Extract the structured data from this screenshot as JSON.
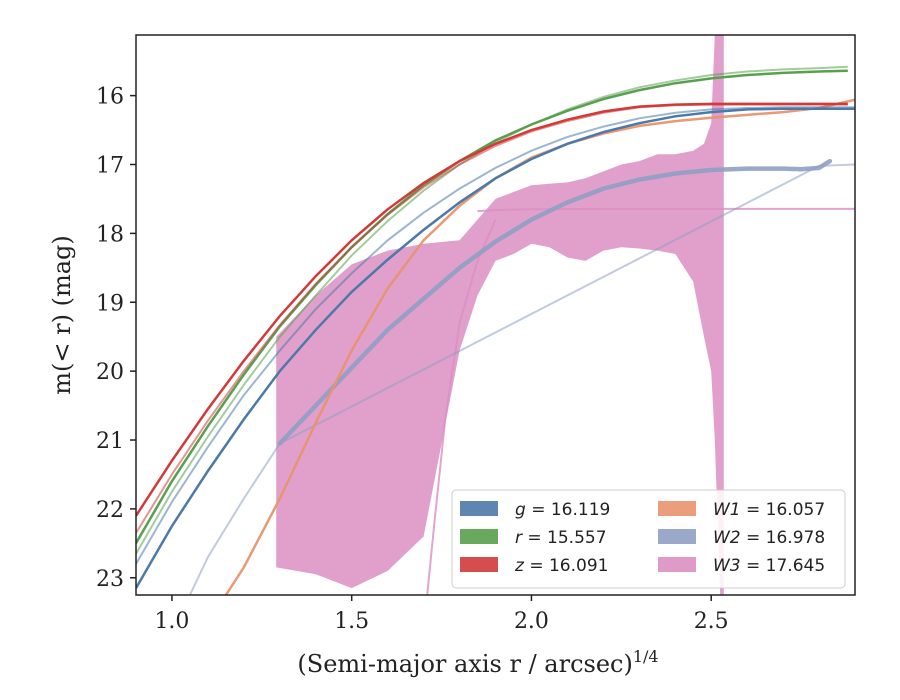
{
  "chart_data": {
    "type": "line",
    "xlabel": "(Semi-major axis r / arcsec)",
    "xlabel_exponent": "1/4",
    "ylabel": "m(< r) (mag)",
    "xlim": [
      0.9,
      2.9
    ],
    "ylim": [
      23.25,
      15.12
    ],
    "y_inverted": true,
    "grid": false,
    "legend_placement": "lower right",
    "x_ticks": [
      1.0,
      1.5,
      2.0,
      2.5
    ],
    "x_tick_labels": [
      "1.0",
      "1.5",
      "2.0",
      "2.5"
    ],
    "y_ticks": [
      16,
      17,
      18,
      19,
      20,
      21,
      22,
      23
    ],
    "y_tick_labels": [
      "16",
      "17",
      "18",
      "19",
      "20",
      "21",
      "22",
      "23"
    ],
    "legend": [
      {
        "band": "g",
        "value": "16.119",
        "color": "#4c79a8"
      },
      {
        "band": "r",
        "value": "15.557",
        "color": "#58a04e"
      },
      {
        "band": "z",
        "value": "16.091",
        "color": "#d23a3a"
      },
      {
        "band": "W1",
        "value": "16.057",
        "color": "#e8946d"
      },
      {
        "band": "W2",
        "value": "16.978",
        "color": "#8f9fc4"
      },
      {
        "band": "W3",
        "value": "17.645",
        "color": "#db8fc2"
      }
    ],
    "series": [
      {
        "name": "g",
        "color": "#4c79a8",
        "x": [
          0.9,
          1.0,
          1.1,
          1.2,
          1.3,
          1.4,
          1.5,
          1.6,
          1.7,
          1.8,
          1.9,
          2.0,
          2.1,
          2.2,
          2.3,
          2.4,
          2.5,
          2.6,
          2.7,
          2.8,
          2.9
        ],
        "y": [
          23.15,
          22.25,
          21.45,
          20.7,
          20.0,
          19.4,
          18.85,
          18.38,
          17.95,
          17.55,
          17.2,
          16.92,
          16.7,
          16.53,
          16.4,
          16.3,
          16.24,
          16.2,
          16.19,
          16.19,
          16.19
        ],
        "y_alt": [
          22.8,
          21.9,
          21.1,
          20.35,
          19.7,
          19.1,
          18.58,
          18.1,
          17.7,
          17.35,
          17.05,
          16.8,
          16.6,
          16.45,
          16.33,
          16.25,
          16.2,
          16.18,
          16.17,
          16.17,
          16.17
        ]
      },
      {
        "name": "r",
        "color": "#58a04e",
        "x": [
          0.9,
          1.0,
          1.1,
          1.2,
          1.3,
          1.4,
          1.5,
          1.6,
          1.7,
          1.8,
          1.9,
          2.0,
          2.1,
          2.2,
          2.3,
          2.4,
          2.5,
          2.6,
          2.7,
          2.8,
          2.88
        ],
        "y": [
          22.5,
          21.6,
          20.8,
          20.05,
          19.35,
          18.75,
          18.2,
          17.72,
          17.3,
          16.95,
          16.65,
          16.42,
          16.22,
          16.05,
          15.92,
          15.82,
          15.75,
          15.7,
          15.67,
          15.65,
          15.64
        ],
        "y_alt": [
          22.65,
          21.75,
          20.95,
          20.2,
          19.5,
          18.9,
          18.32,
          17.82,
          17.38,
          17.0,
          16.68,
          16.42,
          16.2,
          16.02,
          15.88,
          15.78,
          15.7,
          15.65,
          15.62,
          15.6,
          15.58
        ]
      },
      {
        "name": "z",
        "color": "#d23a3a",
        "x": [
          0.9,
          1.0,
          1.1,
          1.2,
          1.3,
          1.4,
          1.5,
          1.6,
          1.7,
          1.8,
          1.9,
          2.0,
          2.1,
          2.2,
          2.3,
          2.4,
          2.5,
          2.6,
          2.7,
          2.8,
          2.88
        ],
        "y": [
          22.1,
          21.3,
          20.55,
          19.85,
          19.2,
          18.62,
          18.1,
          17.65,
          17.27,
          16.95,
          16.7,
          16.5,
          16.35,
          16.23,
          16.16,
          16.13,
          16.12,
          16.12,
          16.12,
          16.12,
          16.12
        ],
        "y_alt": [
          22.35,
          21.5,
          20.72,
          20.0,
          19.33,
          18.73,
          18.2,
          17.73,
          17.33,
          17.0,
          16.73,
          16.52,
          16.37,
          16.25,
          16.17,
          16.14,
          16.13,
          16.13,
          16.13,
          16.13,
          16.13
        ]
      },
      {
        "name": "W1",
        "color": "#e8946d",
        "x": [
          1.15,
          1.2,
          1.3,
          1.4,
          1.5,
          1.6,
          1.7,
          1.8,
          1.9,
          2.0,
          2.1,
          2.2,
          2.3,
          2.4,
          2.5,
          2.6,
          2.7,
          2.8,
          2.9
        ],
        "y": [
          23.25,
          22.85,
          21.85,
          20.75,
          19.7,
          18.8,
          18.1,
          17.6,
          17.2,
          16.9,
          16.7,
          16.55,
          16.44,
          16.37,
          16.32,
          16.28,
          16.24,
          16.18,
          16.06
        ]
      },
      {
        "name": "W2",
        "color": "#8f9fc4",
        "x": [
          1.3,
          1.4,
          1.5,
          1.6,
          1.7,
          1.8,
          1.9,
          2.0,
          2.1,
          2.2,
          2.3,
          2.4,
          2.5,
          2.6,
          2.7,
          2.75,
          2.8,
          2.83
        ],
        "y": [
          21.05,
          20.5,
          19.95,
          19.4,
          18.95,
          18.5,
          18.12,
          17.8,
          17.55,
          17.35,
          17.22,
          17.13,
          17.08,
          17.06,
          17.06,
          17.07,
          17.05,
          16.95
        ],
        "faint_x": [
          1.05,
          1.1,
          1.2,
          1.3,
          2.8,
          2.9
        ],
        "faint_y": [
          23.25,
          22.7,
          21.85,
          21.05,
          17.02,
          17.0
        ]
      },
      {
        "name": "W3",
        "color": "#db8fc2",
        "band_x": [
          1.29,
          1.4,
          1.5,
          1.6,
          1.7,
          1.8,
          1.85,
          1.9,
          1.95,
          2.0,
          2.05,
          2.1,
          2.15,
          2.2,
          2.25,
          2.3,
          2.35,
          2.4,
          2.45,
          2.48,
          2.5,
          2.51,
          2.525,
          2.535
        ],
        "band_upper": [
          19.5,
          18.9,
          18.45,
          18.25,
          18.15,
          18.1,
          17.8,
          17.5,
          17.4,
          17.3,
          17.28,
          17.26,
          17.2,
          17.1,
          17.0,
          16.95,
          16.85,
          16.85,
          16.8,
          16.7,
          16.4,
          15.12,
          15.12,
          15.12
        ],
        "band_lower": [
          22.85,
          22.95,
          23.15,
          22.9,
          22.4,
          19.7,
          18.9,
          18.4,
          18.3,
          18.15,
          18.2,
          18.35,
          18.4,
          18.25,
          18.2,
          18.22,
          18.25,
          18.3,
          18.7,
          19.5,
          20.0,
          21.0,
          23.25,
          23.25
        ],
        "flat_x": [
          1.85,
          1.9,
          2.0,
          2.2,
          2.5,
          2.7,
          2.9
        ],
        "flat_y": [
          17.68,
          17.66,
          17.65,
          17.645,
          17.645,
          17.645,
          17.645
        ],
        "rise_x": [
          1.71,
          1.73,
          1.76,
          1.8,
          1.85,
          1.9
        ],
        "rise_y": [
          23.25,
          22.2,
          20.7,
          19.3,
          18.4,
          17.8
        ]
      }
    ]
  }
}
